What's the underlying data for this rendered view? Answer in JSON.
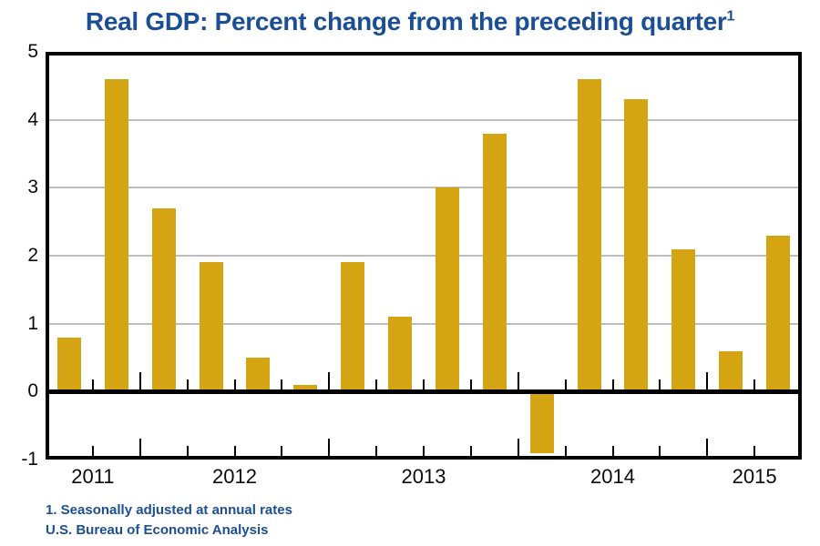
{
  "header": {
    "title": "Real GDP: Percent change from the preceding quarter",
    "footnote_marker": "1"
  },
  "footer": {
    "lines": [
      "1. Seasonally adjusted at annual rates",
      "U.S. Bureau of Economic Analysis"
    ]
  },
  "chart_data": {
    "type": "bar",
    "title": "Real GDP: Percent change from the preceding quarter",
    "xlabel": "",
    "ylabel": "",
    "ylim": [
      -1,
      5
    ],
    "yticks": [
      5,
      4,
      3,
      2,
      1,
      0,
      -1
    ],
    "grid": true,
    "grid_values": [
      4,
      3,
      2,
      1
    ],
    "legend": "none",
    "years": [
      {
        "label": "2011",
        "values": [
          0.8,
          4.6
        ]
      },
      {
        "label": "2012",
        "values": [
          2.7,
          1.9,
          0.5,
          0.1
        ]
      },
      {
        "label": "2013",
        "values": [
          1.9,
          1.1,
          3.0,
          3.8
        ]
      },
      {
        "label": "2014",
        "values": [
          -0.9,
          4.6,
          4.3,
          2.1
        ]
      },
      {
        "label": "2015",
        "values": [
          0.6,
          2.3
        ]
      }
    ],
    "colors": {
      "bar": "#D4A412",
      "grid": "#BDBDBD",
      "axis": "#000000",
      "title_text": "#1B4E94",
      "footnote_text": "#1B4E94",
      "tick_label": "#0B0B0B"
    }
  }
}
